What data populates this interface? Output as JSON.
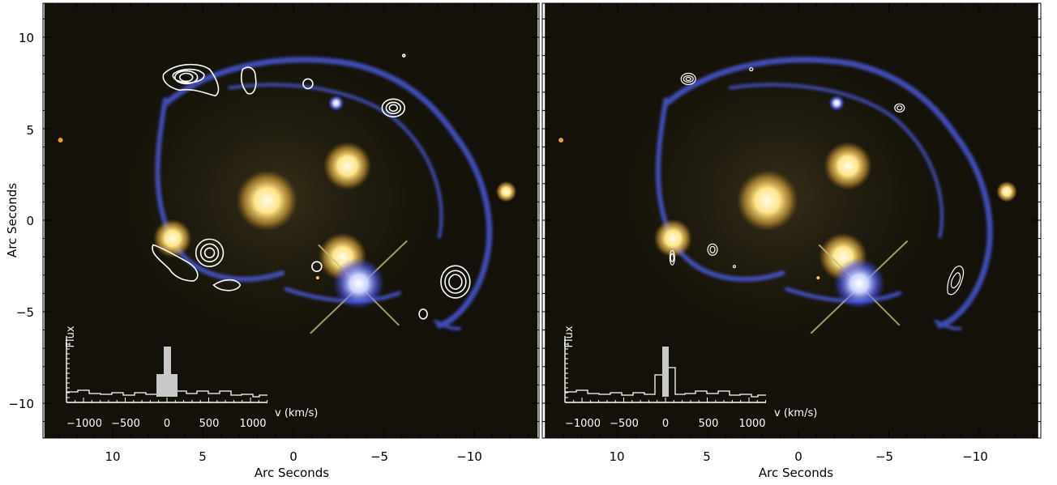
{
  "panels": [
    {
      "id": "left",
      "x_ticks": [
        "10",
        "5",
        "0",
        "−5",
        "−10"
      ],
      "x_title": "Arc Seconds",
      "y_ticks": [
        "10",
        "5",
        "0",
        "−5",
        "−10"
      ],
      "y_title": "Arc Seconds",
      "inset": {
        "flux_label": "Flux",
        "v_label": "v (km/s)",
        "v_ticks": [
          "−1000",
          "−500",
          "0",
          "500",
          "1000"
        ]
      }
    },
    {
      "id": "right",
      "x_ticks": [
        "10",
        "5",
        "0",
        "−5",
        "−10"
      ],
      "x_title": "Arc Seconds",
      "inset": {
        "flux_label": "Flux",
        "v_label": "v (km/s)",
        "v_ticks": [
          "−1000",
          "−500",
          "0",
          "500",
          "1000"
        ]
      }
    }
  ],
  "colors": {
    "sky": "#141208",
    "arc": "#4a58d8",
    "galaxy": "#ffe08a",
    "contour": "#ffffff",
    "spectrum_fill": "#c8c8c8"
  }
}
